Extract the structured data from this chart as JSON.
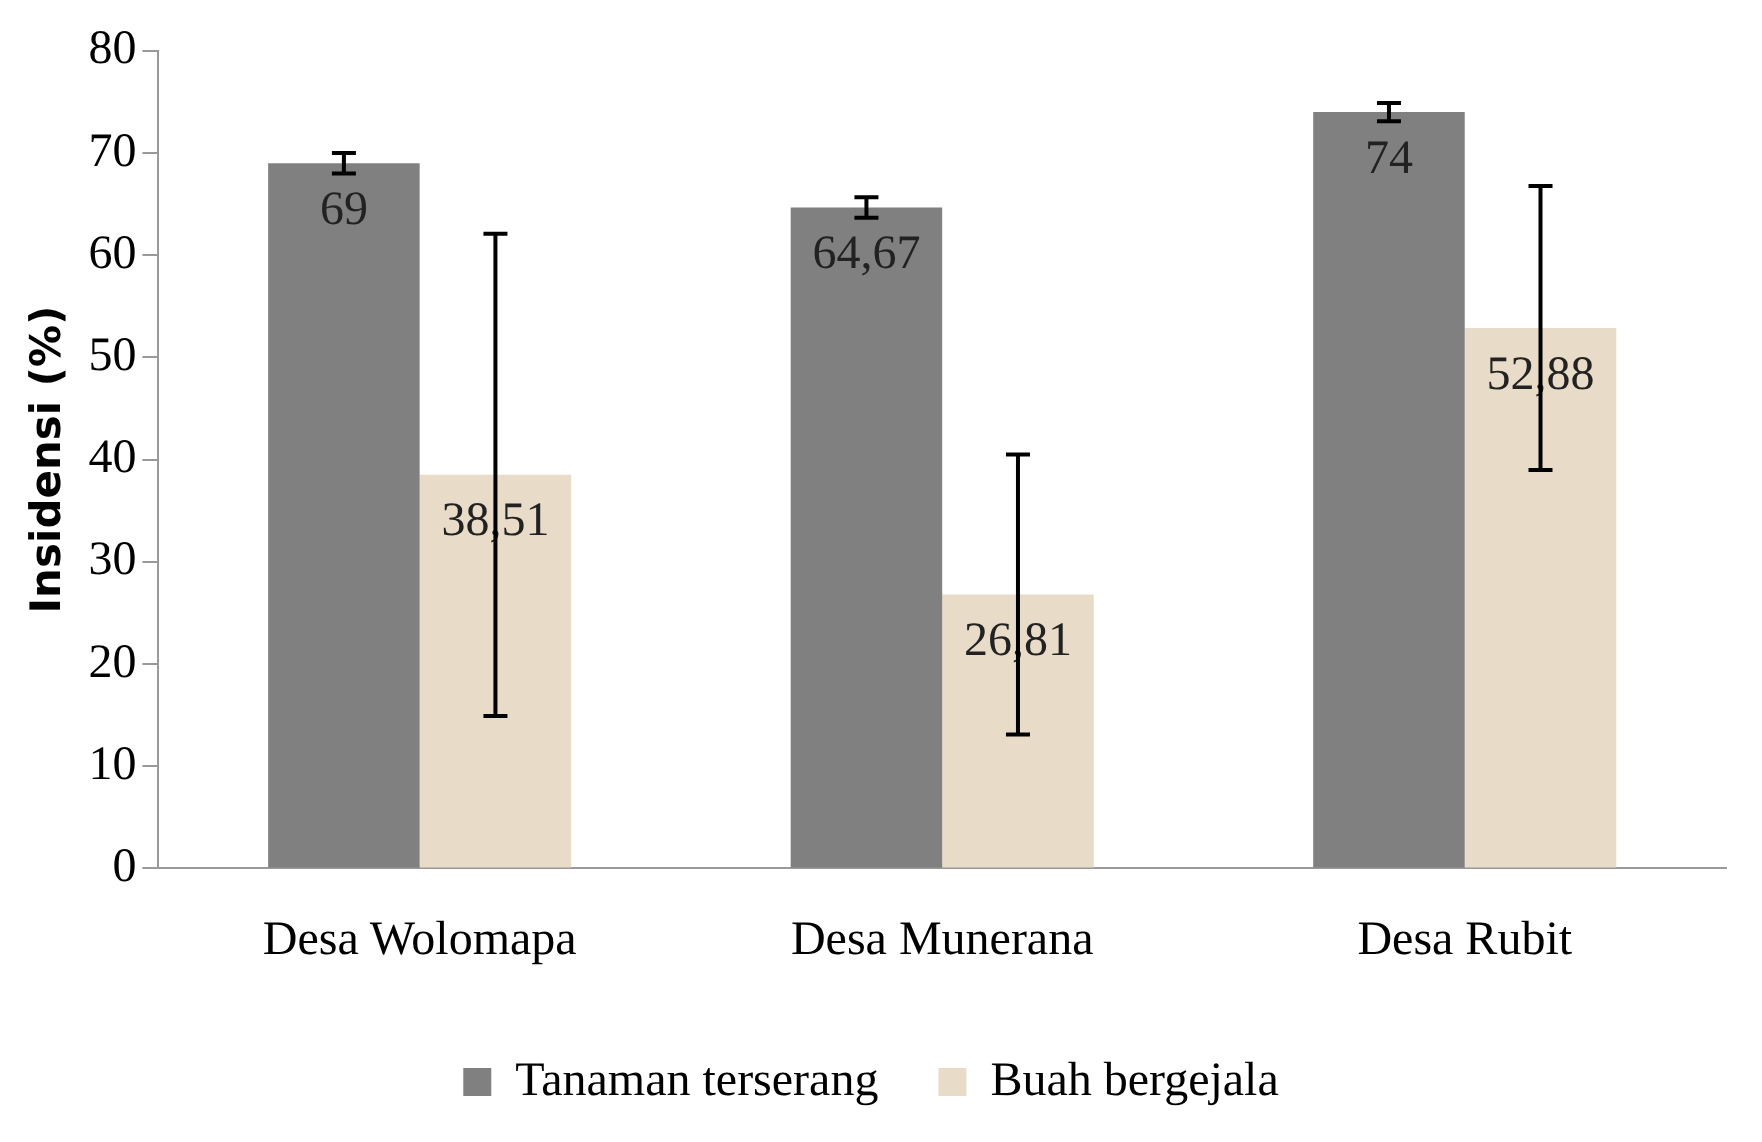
{
  "chart_data": {
    "type": "bar",
    "ylabel": "Insidensi (%)",
    "categories": [
      "Desa Wolomapa",
      "Desa Munerana",
      "Desa Rubit"
    ],
    "series": [
      {
        "name": "Tanaman terserang",
        "color": "#808080",
        "values": [
          69,
          64.67,
          74
        ],
        "errors": [
          1,
          1,
          0.9
        ],
        "value_labels": [
          "69",
          "64,67",
          "74"
        ]
      },
      {
        "name": "Buah bergejala",
        "color": "#e8dcc8",
        "values": [
          38.51,
          26.81,
          52.88
        ],
        "errors": [
          23.6,
          13.7,
          13.9
        ],
        "value_labels": [
          "38,51",
          "26,81",
          "52,88"
        ]
      }
    ],
    "ylim": [
      0,
      80
    ],
    "yticks": [
      0,
      10,
      20,
      30,
      40,
      50,
      60,
      70,
      80
    ],
    "grid": false,
    "legend": "bottom"
  }
}
